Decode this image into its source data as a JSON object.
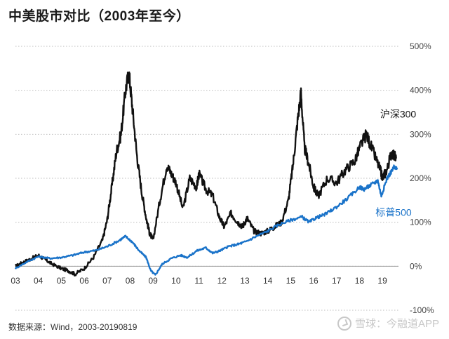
{
  "chart_data": {
    "type": "line",
    "title": "中美股市对比（2003年至今）",
    "source": "数据来源：Wind，2003-20190819",
    "x_ticks": [
      "03",
      "04",
      "05",
      "06",
      "07",
      "08",
      "09",
      "10",
      "11",
      "12",
      "13",
      "14",
      "15",
      "16",
      "17",
      "18",
      "19"
    ],
    "y_ticks": [
      "500%",
      "400%",
      "300%",
      "200%",
      "100%",
      "0%",
      "-100%"
    ],
    "ylim": [
      -100,
      500
    ],
    "xlim": [
      2003.0,
      2019.7
    ],
    "grid": "horizontal",
    "colors": {
      "csi300": "#111111",
      "sp500": "#1a73c9"
    },
    "series": [
      {
        "name": "沪深300",
        "x": [
          2003.0,
          2003.3,
          2003.6,
          2004.0,
          2004.3,
          2004.6,
          2005.0,
          2005.3,
          2005.6,
          2006.0,
          2006.4,
          2006.8,
          2007.0,
          2007.2,
          2007.4,
          2007.6,
          2007.8,
          2007.95,
          2008.1,
          2008.3,
          2008.5,
          2008.7,
          2008.85,
          2009.0,
          2009.3,
          2009.6,
          2009.8,
          2010.0,
          2010.3,
          2010.6,
          2010.9,
          2011.0,
          2011.3,
          2011.6,
          2011.9,
          2012.1,
          2012.4,
          2012.7,
          2012.9,
          2013.1,
          2013.4,
          2013.7,
          2014.0,
          2014.3,
          2014.6,
          2014.9,
          2015.1,
          2015.3,
          2015.45,
          2015.6,
          2015.8,
          2016.0,
          2016.2,
          2016.6,
          2017.0,
          2017.4,
          2017.8,
          2018.05,
          2018.3,
          2018.6,
          2018.9,
          2019.0,
          2019.2,
          2019.4,
          2019.6
        ],
        "values": [
          0,
          8,
          15,
          25,
          15,
          5,
          -5,
          -10,
          -18,
          -5,
          20,
          60,
          105,
          180,
          260,
          300,
          400,
          440,
          360,
          250,
          170,
          110,
          75,
          60,
          150,
          230,
          210,
          190,
          130,
          200,
          180,
          210,
          175,
          160,
          110,
          90,
          120,
          100,
          90,
          110,
          80,
          75,
          80,
          90,
          100,
          150,
          230,
          330,
          395,
          270,
          230,
          180,
          160,
          200,
          190,
          220,
          240,
          275,
          300,
          260,
          220,
          200,
          220,
          260,
          245
        ]
      },
      {
        "name": "标普500",
        "x": [
          2003.0,
          2003.5,
          2004.0,
          2004.5,
          2005.0,
          2005.5,
          2006.0,
          2006.5,
          2007.0,
          2007.5,
          2007.8,
          2008.1,
          2008.4,
          2008.7,
          2008.9,
          2009.1,
          2009.4,
          2009.8,
          2010.2,
          2010.5,
          2010.9,
          2011.3,
          2011.6,
          2011.9,
          2012.3,
          2012.7,
          2013.0,
          2013.5,
          2014.0,
          2014.5,
          2015.0,
          2015.5,
          2015.8,
          2016.1,
          2016.5,
          2017.0,
          2017.5,
          2018.0,
          2018.2,
          2018.5,
          2018.8,
          2018.95,
          2019.2,
          2019.5,
          2019.65
        ],
        "values": [
          -5,
          10,
          22,
          18,
          20,
          25,
          32,
          36,
          45,
          58,
          68,
          55,
          35,
          20,
          -10,
          -20,
          5,
          18,
          25,
          20,
          35,
          42,
          30,
          35,
          45,
          50,
          55,
          68,
          80,
          95,
          105,
          112,
          100,
          110,
          118,
          135,
          155,
          180,
          175,
          185,
          195,
          160,
          200,
          225,
          220
        ]
      }
    ],
    "series_labels": [
      {
        "text": "沪深300",
        "x": 2018.9,
        "y": 338
      },
      {
        "text": "标普500",
        "x": 2018.7,
        "y": 115
      }
    ]
  },
  "watermark": {
    "text": "雪球：今融道APP"
  }
}
